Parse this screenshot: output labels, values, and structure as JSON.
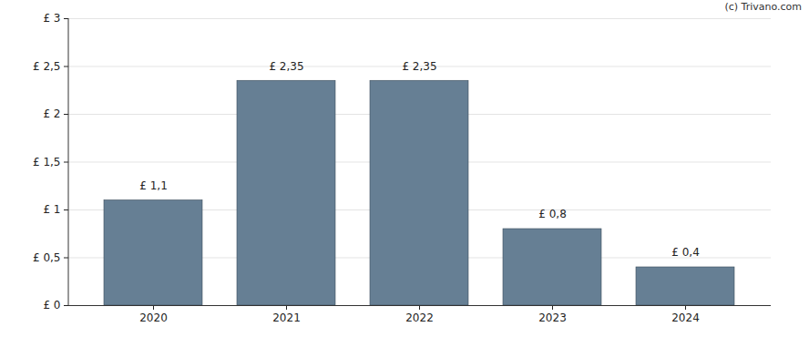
{
  "chart_data": {
    "type": "bar",
    "categories": [
      "2020",
      "2021",
      "2022",
      "2023",
      "2024"
    ],
    "values": [
      1.1,
      2.35,
      2.35,
      0.8,
      0.4
    ],
    "value_labels": [
      "£ 1,1",
      "£ 2,35",
      "£ 2,35",
      "£ 0,8",
      "£ 0,4"
    ],
    "data_labels": true,
    "color": "#667f94",
    "ylim": [
      0,
      3
    ],
    "yticks": [
      {
        "value": 0,
        "label": "£ 0"
      },
      {
        "value": 0.5,
        "label": "£ 0,5"
      },
      {
        "value": 1,
        "label": "£ 1"
      },
      {
        "value": 1.5,
        "label": "£ 1,5"
      },
      {
        "value": 2,
        "label": "£ 2"
      },
      {
        "value": 2.5,
        "label": "£ 2,5"
      },
      {
        "value": 3,
        "label": "£ 3"
      }
    ],
    "grid": true,
    "annotations": [
      "(c) Trivano.com"
    ]
  }
}
